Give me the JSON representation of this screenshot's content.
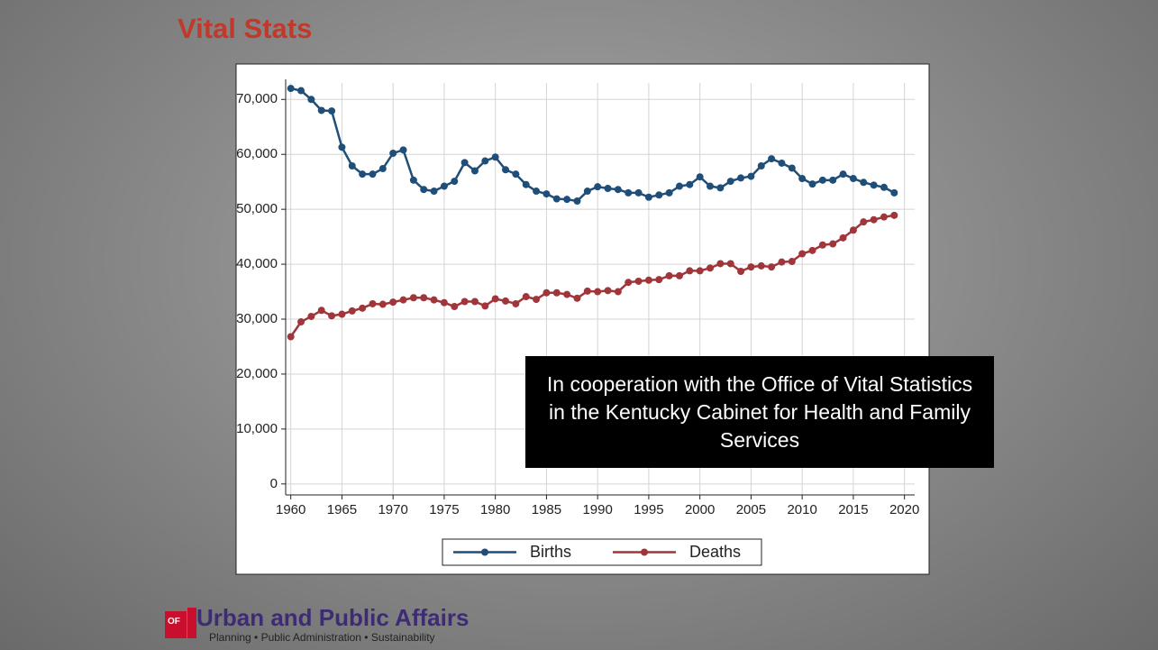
{
  "slide": {
    "title": "Vital Stats",
    "annotation": "In cooperation with the Office of Vital Statistics in the Kentucky Cabinet for Health and Family Services",
    "logo_small": "OF",
    "footer_title": "Urban and Public Affairs",
    "footer_subtitle": "Planning • Public Administration • Sustainability"
  },
  "chart_data": {
    "type": "line",
    "x": [
      1960,
      1961,
      1962,
      1963,
      1964,
      1965,
      1966,
      1967,
      1968,
      1969,
      1970,
      1971,
      1972,
      1973,
      1974,
      1975,
      1976,
      1977,
      1978,
      1979,
      1980,
      1981,
      1982,
      1983,
      1984,
      1985,
      1986,
      1987,
      1988,
      1989,
      1990,
      1991,
      1992,
      1993,
      1994,
      1995,
      1996,
      1997,
      1998,
      1999,
      2000,
      2001,
      2002,
      2003,
      2004,
      2005,
      2006,
      2007,
      2008,
      2009,
      2010,
      2011,
      2012,
      2013,
      2014,
      2015,
      2016,
      2017,
      2018,
      2019
    ],
    "series": [
      {
        "name": "Births",
        "color": "#1f4e79",
        "values": [
          72000,
          71600,
          70000,
          68000,
          67900,
          61300,
          57900,
          56400,
          56400,
          57400,
          60200,
          60800,
          55300,
          53600,
          53300,
          54200,
          55100,
          58500,
          57000,
          58800,
          59500,
          57200,
          56400,
          54500,
          53300,
          52800,
          51900,
          51800,
          51500,
          53300,
          54100,
          53800,
          53600,
          53000,
          53000,
          52200,
          52600,
          53000,
          54200,
          54500,
          55900,
          54200,
          53900,
          55100,
          55700,
          56000,
          57900,
          59200,
          58400,
          57500,
          55600,
          54600,
          55300,
          55300,
          56400,
          55600,
          54900,
          54400,
          54000,
          53000
        ]
      },
      {
        "name": "Deaths",
        "color": "#a0353a",
        "values": [
          26800,
          29500,
          30500,
          31600,
          30600,
          30900,
          31500,
          32000,
          32800,
          32700,
          33100,
          33500,
          33900,
          33900,
          33500,
          33000,
          32300,
          33200,
          33200,
          32400,
          33700,
          33300,
          32800,
          34100,
          33600,
          34800,
          34800,
          34500,
          33800,
          35100,
          35000,
          35200,
          35000,
          36700,
          36900,
          37100,
          37200,
          37900,
          37900,
          38800,
          38800,
          39300,
          40100,
          40100,
          38700,
          39500,
          39700,
          39500,
          40400,
          40500,
          41900,
          42500,
          43500,
          43700,
          44800,
          46200,
          47700,
          48100,
          48600,
          48900
        ]
      }
    ],
    "xlim": [
      1959.5,
      2021
    ],
    "xticks": [
      1960,
      1965,
      1970,
      1975,
      1980,
      1985,
      1990,
      1995,
      2000,
      2005,
      2010,
      2015,
      2020
    ],
    "ylim": [
      -2000,
      73000
    ],
    "yticks": [
      0,
      {
        "value": 10000,
        "label": "10,000"
      },
      {
        "value": 20000,
        "label": "20,000"
      },
      {
        "value": 30000,
        "label": "30,000"
      },
      {
        "value": 40000,
        "label": "40,000"
      },
      {
        "value": 50000,
        "label": "50,000"
      },
      {
        "value": 60000,
        "label": "60,000"
      },
      {
        "value": 70000,
        "label": "70,000"
      }
    ],
    "grid": true,
    "legend": "bottom"
  }
}
